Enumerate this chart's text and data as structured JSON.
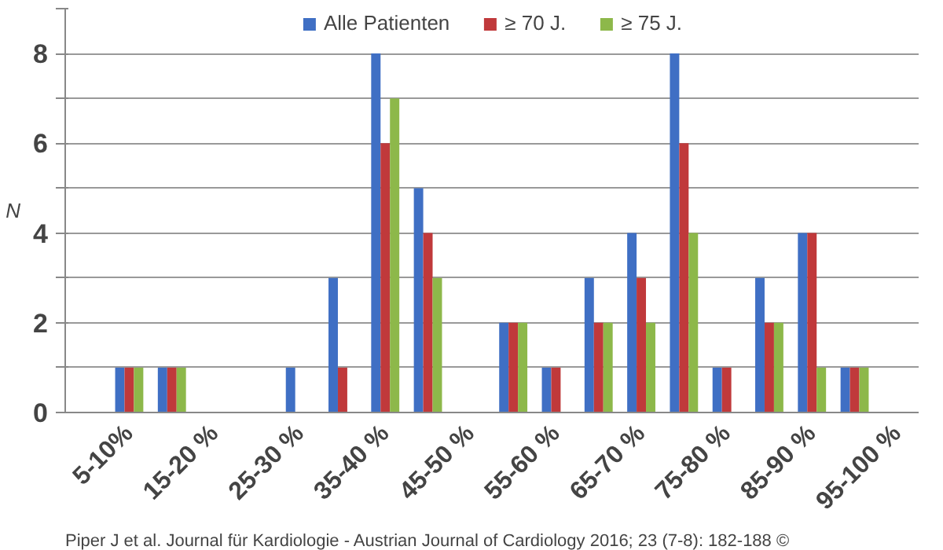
{
  "chart_data": {
    "type": "bar",
    "ylabel": "N",
    "categories": [
      null,
      "5-10%",
      null,
      "15-20 %",
      null,
      "25-30 %",
      null,
      "35-40 %",
      null,
      "45-50 %",
      null,
      "55-60 %",
      null,
      "65-70 %",
      null,
      "75-80 %",
      null,
      "85-90 %",
      null,
      "95-100 %"
    ],
    "series": [
      {
        "name": "Alle Patienten",
        "color": "#3f6fc4",
        "values": [
          0,
          1,
          1,
          0,
          0,
          1,
          3,
          8,
          5,
          0,
          2,
          1,
          3,
          4,
          8,
          1,
          3,
          4,
          1,
          0
        ]
      },
      {
        "name": "≥ 70 J.",
        "color": "#c0393b",
        "values": [
          0,
          1,
          1,
          0,
          0,
          0,
          1,
          6,
          4,
          0,
          2,
          1,
          2,
          3,
          6,
          1,
          2,
          4,
          1,
          0
        ]
      },
      {
        "name": "≥ 75 J.",
        "color": "#8db84a",
        "values": [
          0,
          1,
          1,
          0,
          0,
          0,
          0,
          7,
          3,
          0,
          2,
          0,
          2,
          2,
          4,
          0,
          2,
          1,
          1,
          0
        ]
      }
    ],
    "ylim": [
      0,
      9
    ],
    "yticks": [
      0,
      {
        "value": 1,
        "label": null
      },
      2,
      {
        "value": 3,
        "label": null
      },
      4,
      {
        "value": 5,
        "label": null
      },
      6,
      {
        "value": 7,
        "label": null
      },
      8,
      {
        "value": 9,
        "label": null
      }
    ],
    "grid": "y",
    "legend": "top",
    "annotations": [
      "Piper J et al. Journal für Kardiologie - Austrian Journal of Cardiology 2016; 23 (7-8): 182-188 ©"
    ]
  }
}
